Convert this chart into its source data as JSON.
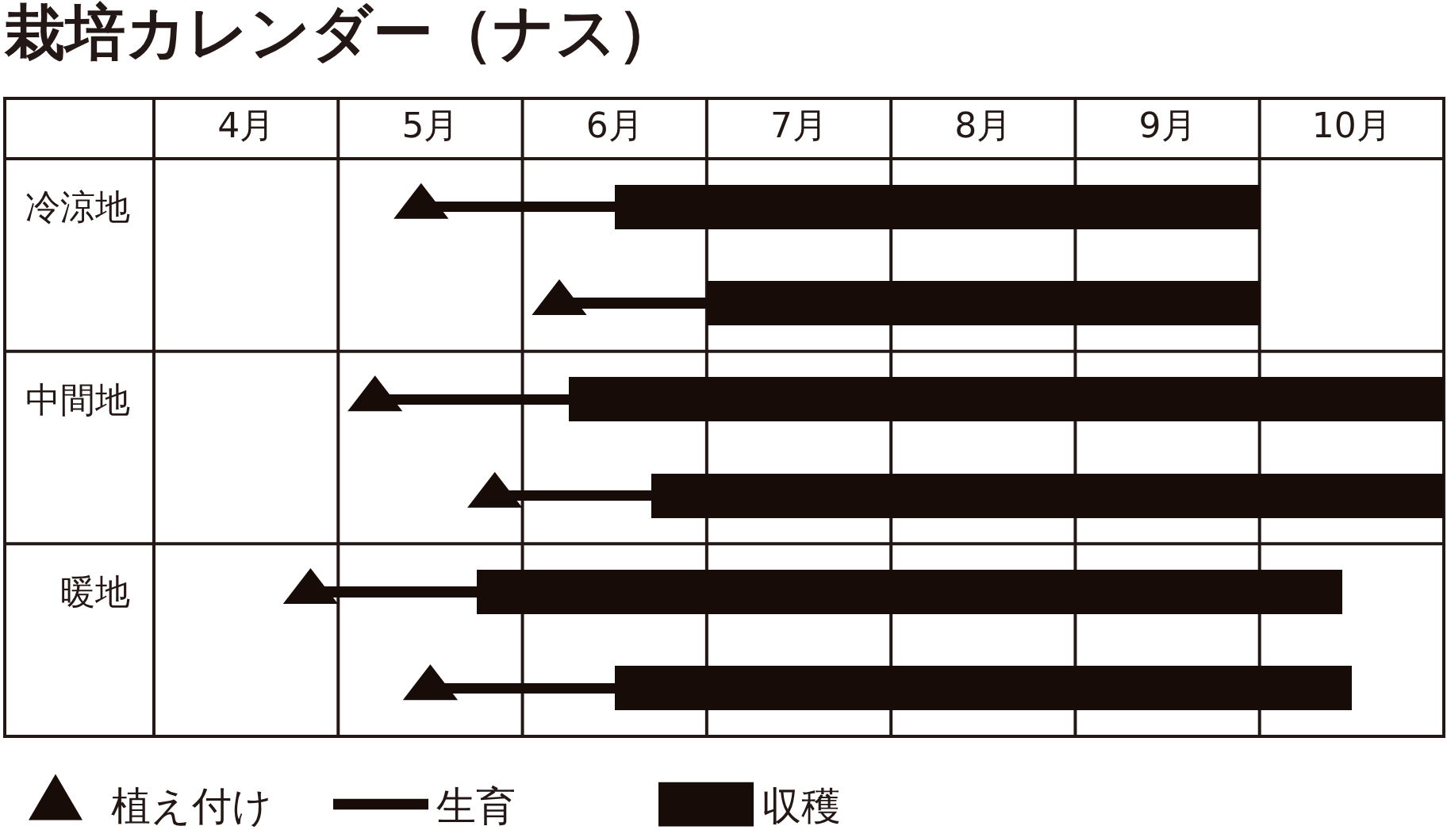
{
  "chart_data": {
    "type": "bar",
    "title": "栽培カレンダー（ナス）",
    "orientation": "horizontal",
    "categories": [
      "冷涼地",
      null,
      "中間地",
      null,
      "暖地",
      null
    ],
    "series": [
      {
        "name": "植え付け",
        "type": "scatter",
        "color": "#170c07",
        "values": [
          5.45,
          6.2,
          5.2,
          5.85,
          4.85,
          5.5
        ]
      },
      {
        "name": "生育",
        "color": "#170c07",
        "base": [
          5.45,
          6.2,
          5.2,
          5.85,
          4.85,
          5.5
        ],
        "values": [
          1.05,
          0.8,
          1.05,
          0.85,
          0.9,
          1.0
        ]
      },
      {
        "name": "収穫",
        "color": "#170c07",
        "base": [
          6.5,
          7.0,
          6.25,
          6.7,
          5.75,
          6.5
        ],
        "values": [
          3.5,
          3.0,
          4.75,
          4.3,
          4.7,
          4.0
        ]
      }
    ],
    "xlim": [
      4,
      11
    ],
    "xticks": [
      {
        "value": 4,
        "label": null
      },
      {
        "value": 4.5,
        "label": "4月"
      },
      {
        "value": 5,
        "label": null
      },
      {
        "value": 5.5,
        "label": "5月"
      },
      {
        "value": 6,
        "label": null
      },
      {
        "value": 6.5,
        "label": "6月"
      },
      {
        "value": 7,
        "label": null
      },
      {
        "value": 7.5,
        "label": "7月"
      },
      {
        "value": 8,
        "label": null
      },
      {
        "value": 8.5,
        "label": "8月"
      },
      {
        "value": 9,
        "label": null
      },
      {
        "value": 9.5,
        "label": "9月"
      },
      {
        "value": 10,
        "label": null
      },
      {
        "value": 10.5,
        "label": "10月"
      },
      {
        "value": 11,
        "label": null
      }
    ],
    "grid": true,
    "legend": "bottom left",
    "marker": "triangle"
  }
}
